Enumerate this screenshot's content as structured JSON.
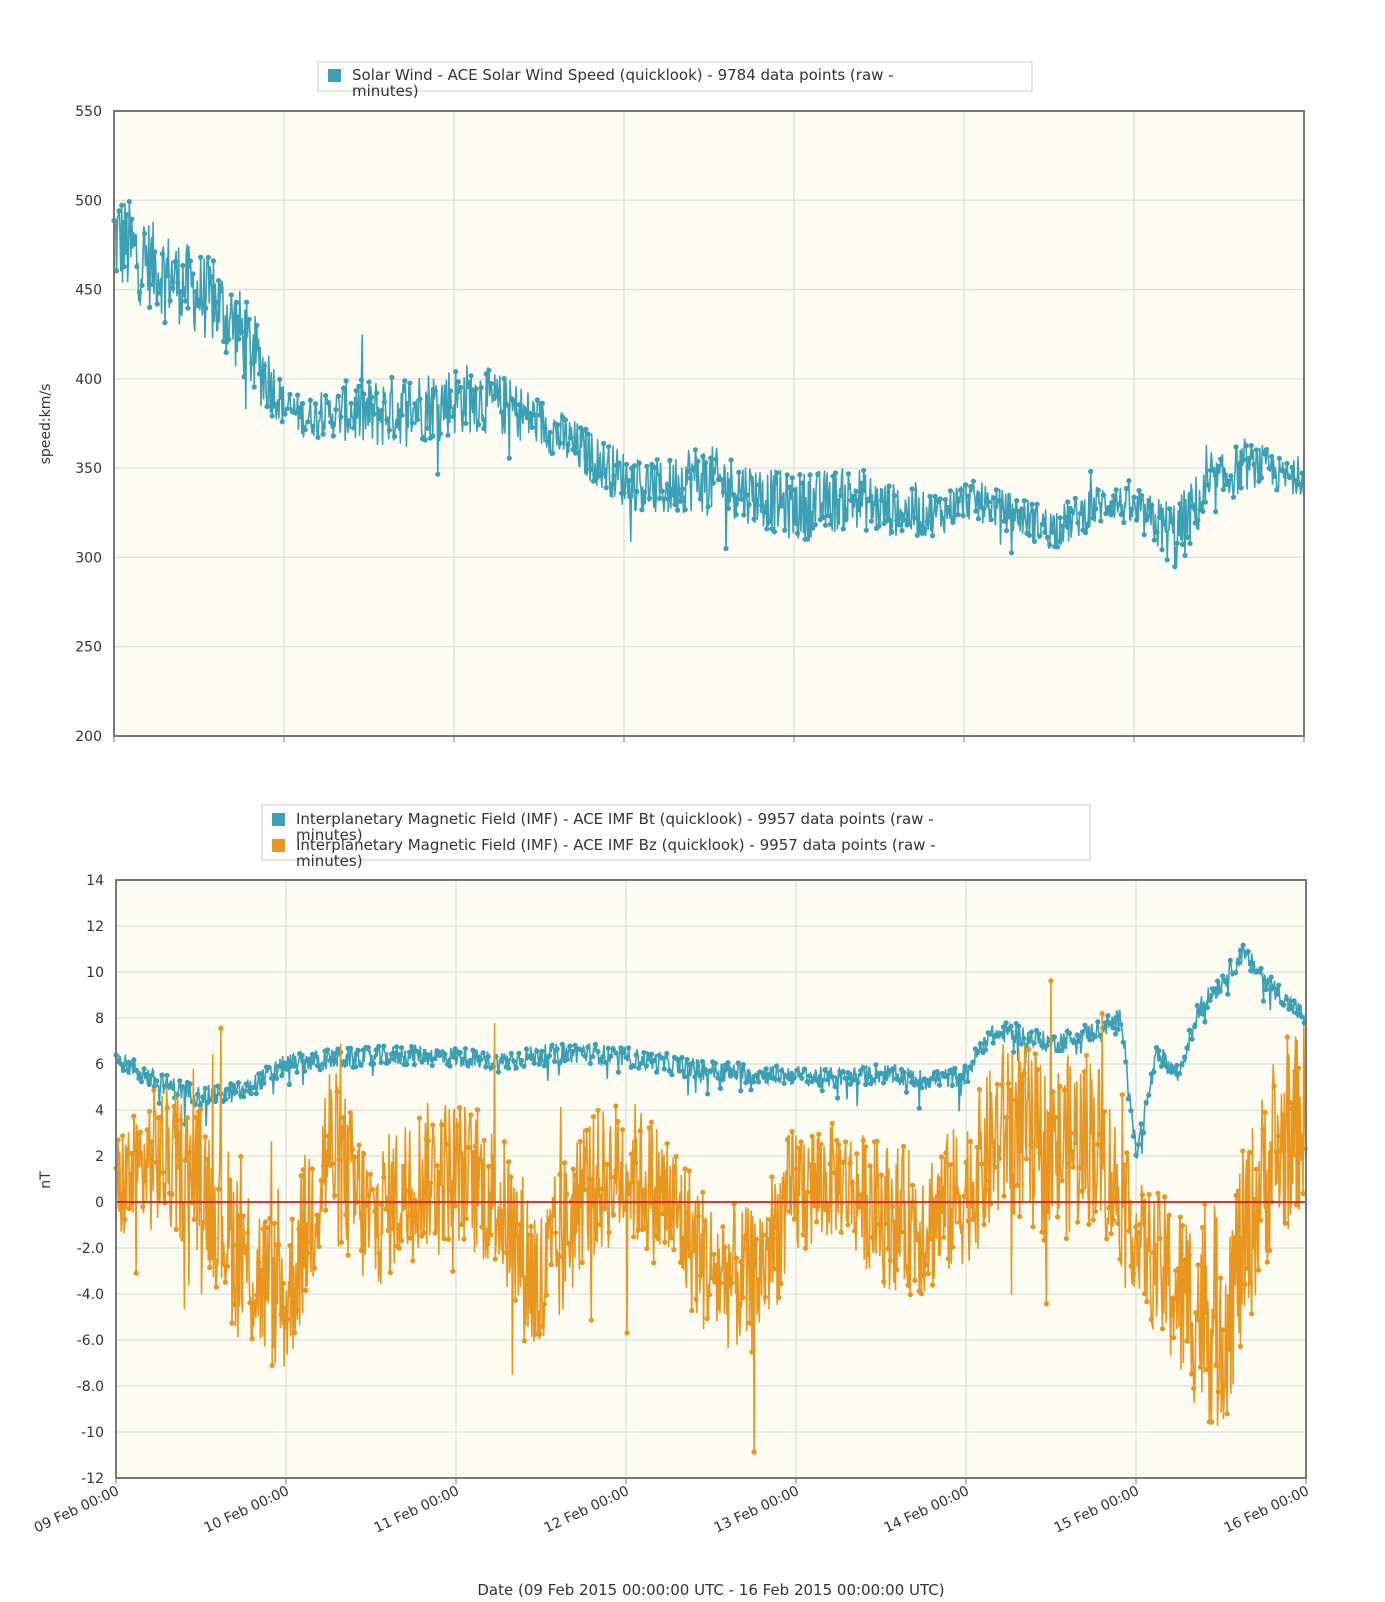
{
  "colors": {
    "speed": "#3b9fb5",
    "bt": "#3b9fb5",
    "bz": "#e8961e",
    "zero_line": "#ee1111",
    "plot_bg": "#fdfcf2",
    "grid": "#d8d8d8",
    "frame": "#777777"
  },
  "chart_data": [
    {
      "type": "line",
      "legend": [
        "Solar Wind - ACE Solar Wind Speed (quicklook) - 9784 data points (raw -\nminutes)"
      ],
      "ylabel": "speed:km/s",
      "ylim": [
        200,
        550
      ],
      "yticks": [
        "550",
        "500",
        "450",
        "400",
        "350",
        "300",
        "250",
        "200"
      ],
      "xlim": [
        "2015-02-09T00:00",
        "2015-02-16T00:00"
      ],
      "series": [
        {
          "name": "Solar Wind - ACE Solar Wind Speed (quicklook) - 9784 data points (raw - minutes)",
          "x": [
            "2015-02-09T00:00",
            "2015-02-09T03:00",
            "2015-02-09T06:00",
            "2015-02-09T09:00",
            "2015-02-09T12:00",
            "2015-02-09T15:00",
            "2015-02-09T18:00",
            "2015-02-09T21:00",
            "2015-02-10T00:00",
            "2015-02-10T03:00",
            "2015-02-10T06:00",
            "2015-02-10T09:00",
            "2015-02-10T12:00",
            "2015-02-10T15:00",
            "2015-02-10T18:00",
            "2015-02-10T21:00",
            "2015-02-11T00:00",
            "2015-02-11T03:00",
            "2015-02-11T06:00",
            "2015-02-11T09:00",
            "2015-02-11T12:00",
            "2015-02-11T15:00",
            "2015-02-11T18:00",
            "2015-02-11T21:00",
            "2015-02-12T00:00",
            "2015-02-12T03:00",
            "2015-02-12T06:00",
            "2015-02-12T09:00",
            "2015-02-12T12:00",
            "2015-02-12T15:00",
            "2015-02-12T18:00",
            "2015-02-12T21:00",
            "2015-02-13T00:00",
            "2015-02-13T03:00",
            "2015-02-13T06:00",
            "2015-02-13T09:00",
            "2015-02-13T12:00",
            "2015-02-13T15:00",
            "2015-02-13T18:00",
            "2015-02-13T21:00",
            "2015-02-14T00:00",
            "2015-02-14T03:00",
            "2015-02-14T06:00",
            "2015-02-14T09:00",
            "2015-02-14T12:00",
            "2015-02-14T15:00",
            "2015-02-14T18:00",
            "2015-02-14T21:00",
            "2015-02-15T00:00",
            "2015-02-15T03:00",
            "2015-02-15T06:00",
            "2015-02-15T09:00",
            "2015-02-15T12:00",
            "2015-02-15T15:00",
            "2015-02-15T18:00",
            "2015-02-15T21:00",
            "2015-02-16T00:00"
          ],
          "values": [
            480,
            470,
            462,
            455,
            448,
            440,
            425,
            405,
            385,
            378,
            380,
            382,
            380,
            382,
            384,
            386,
            388,
            390,
            386,
            382,
            376,
            368,
            360,
            352,
            344,
            340,
            338,
            345,
            344,
            340,
            336,
            332,
            328,
            330,
            332,
            334,
            328,
            326,
            324,
            325,
            333,
            330,
            326,
            322,
            316,
            320,
            328,
            332,
            326,
            320,
            312,
            330,
            342,
            350,
            352,
            345,
            345
          ],
          "spread": [
            35,
            35,
            30,
            30,
            30,
            30,
            30,
            28,
            14,
            14,
            14,
            22,
            25,
            25,
            25,
            25,
            25,
            25,
            22,
            20,
            18,
            18,
            18,
            18,
            20,
            20,
            20,
            24,
            24,
            22,
            22,
            22,
            24,
            24,
            22,
            22,
            20,
            18,
            16,
            15,
            14,
            14,
            14,
            14,
            15,
            15,
            15,
            13,
            14,
            18,
            26,
            22,
            18,
            18,
            14,
            12,
            12
          ]
        }
      ]
    },
    {
      "type": "line",
      "legend": [
        "Interplanetary Magnetic Field (IMF) - ACE IMF Bt (quicklook) - 9957 data points (raw -\nminutes)",
        "Interplanetary Magnetic Field (IMF) - ACE IMF Bz (quicklook) - 9957 data points (raw -\nminutes)"
      ],
      "ylabel": "nT",
      "ylim": [
        -12,
        14
      ],
      "yticks": [
        "14",
        "12",
        "10",
        "8",
        "6",
        "4",
        "2",
        "0",
        "-2.0",
        "-4.0",
        "-6.0",
        "-8.0",
        "-10",
        "-12"
      ],
      "xticks": [
        "09 Feb 00:00",
        "10 Feb 00:00",
        "11 Feb 00:00",
        "12 Feb 00:00",
        "13 Feb 00:00",
        "14 Feb 00:00",
        "15 Feb 00:00",
        "16 Feb 00:00"
      ],
      "xlabel": "Date (09 Feb 2015 00:00:00 UTC - 16 Feb 2015 00:00:00 UTC)",
      "xlim": [
        "2015-02-09T00:00",
        "2015-02-16T00:00"
      ],
      "reference_line": 0,
      "series": [
        {
          "name": "Interplanetary Magnetic Field (IMF) - ACE IMF Bt (quicklook) - 9957 data points (raw - minutes)",
          "x": [
            "2015-02-09T00:00",
            "2015-02-09T06:00",
            "2015-02-09T12:00",
            "2015-02-09T18:00",
            "2015-02-10T00:00",
            "2015-02-10T06:00",
            "2015-02-10T12:00",
            "2015-02-10T18:00",
            "2015-02-11T00:00",
            "2015-02-11T06:00",
            "2015-02-11T12:00",
            "2015-02-11T18:00",
            "2015-02-12T00:00",
            "2015-02-12T06:00",
            "2015-02-12T12:00",
            "2015-02-12T18:00",
            "2015-02-13T00:00",
            "2015-02-13T06:00",
            "2015-02-13T12:00",
            "2015-02-13T18:00",
            "2015-02-14T00:00",
            "2015-02-14T03:00",
            "2015-02-14T06:00",
            "2015-02-14T12:00",
            "2015-02-14T18:00",
            "2015-02-14T22:00",
            "2015-02-15T00:00",
            "2015-02-15T03:00",
            "2015-02-15T06:00",
            "2015-02-15T09:00",
            "2015-02-15T12:00",
            "2015-02-15T15:00",
            "2015-02-15T18:00",
            "2015-02-15T21:00",
            "2015-02-16T00:00"
          ],
          "values": [
            6.2,
            5.2,
            4.6,
            4.8,
            6.0,
            6.2,
            6.3,
            6.4,
            6.3,
            6.1,
            6.4,
            6.5,
            6.3,
            6.0,
            5.7,
            5.6,
            5.5,
            5.4,
            5.6,
            5.3,
            5.5,
            7.2,
            7.4,
            6.9,
            7.4,
            8.0,
            2.0,
            6.5,
            5.5,
            8.5,
            9.5,
            10.8,
            9.8,
            8.8,
            8.0
          ]
        },
        {
          "name": "Interplanetary Magnetic Field (IMF) - ACE IMF Bz (quicklook) - 9957 data points (raw - minutes)",
          "x": [
            "2015-02-09T00:00",
            "2015-02-09T06:00",
            "2015-02-09T12:00",
            "2015-02-09T18:00",
            "2015-02-10T00:00",
            "2015-02-10T06:00",
            "2015-02-10T12:00",
            "2015-02-10T18:00",
            "2015-02-11T00:00",
            "2015-02-11T06:00",
            "2015-02-11T12:00",
            "2015-02-11T18:00",
            "2015-02-12T00:00",
            "2015-02-12T06:00",
            "2015-02-12T12:00",
            "2015-02-12T18:00",
            "2015-02-13T00:00",
            "2015-02-13T06:00",
            "2015-02-13T12:00",
            "2015-02-13T18:00",
            "2015-02-14T00:00",
            "2015-02-14T06:00",
            "2015-02-14T12:00",
            "2015-02-14T18:00",
            "2015-02-15T00:00",
            "2015-02-15T06:00",
            "2015-02-15T12:00",
            "2015-02-15T18:00",
            "2015-02-16T00:00"
          ],
          "values": [
            0.5,
            2.0,
            1.0,
            -2.5,
            -4.5,
            2.5,
            -1.0,
            1.0,
            1.5,
            0.0,
            -4.0,
            0.5,
            1.5,
            0.0,
            -3.0,
            -3.5,
            0.5,
            1.0,
            -0.5,
            -1.0,
            0.5,
            3.5,
            2.0,
            3.0,
            -1.5,
            -4.0,
            -5.5,
            1.0,
            4.0
          ],
          "spread": [
            3,
            4,
            4,
            5,
            4,
            5,
            4,
            4,
            4,
            4,
            5,
            4,
            4,
            4,
            4,
            4,
            4,
            3,
            4,
            4,
            4,
            5,
            5,
            5,
            3,
            5,
            6,
            5,
            5
          ]
        }
      ]
    }
  ]
}
